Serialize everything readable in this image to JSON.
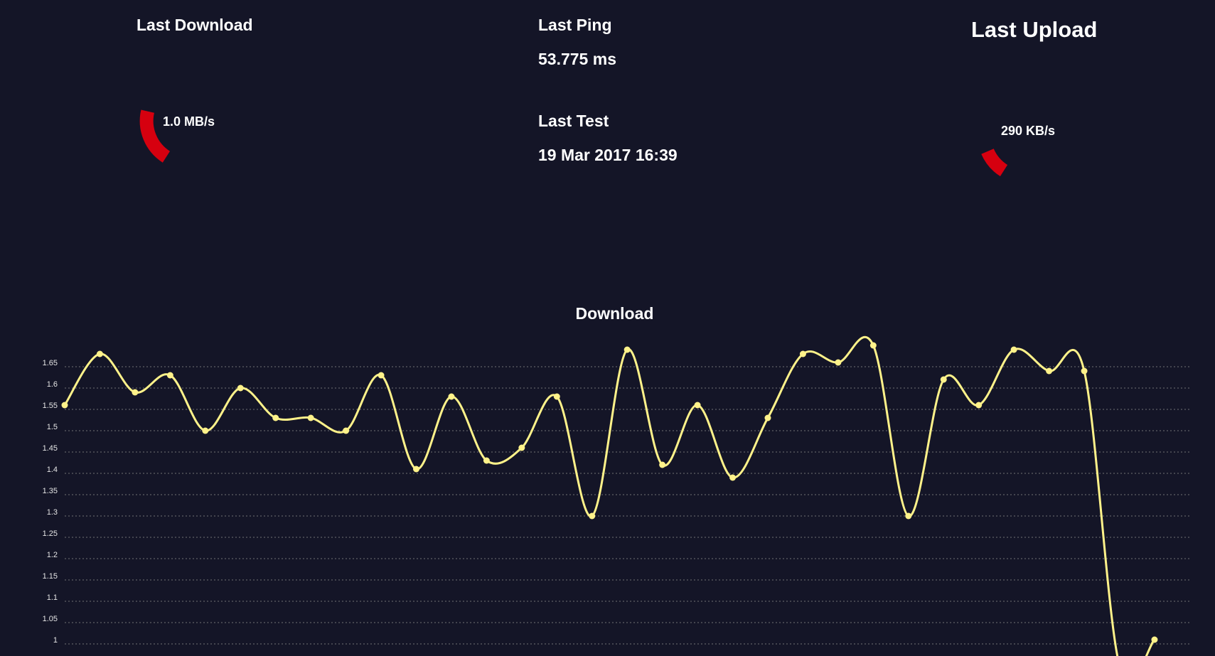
{
  "download": {
    "title": "Last Download",
    "gauge_value": "1.0 MB/s"
  },
  "ping": {
    "title": "Last Ping",
    "value": "53.775 ms"
  },
  "test": {
    "title": "Last Test",
    "value": "19 Mar 2017 16:39"
  },
  "upload": {
    "title": "Last Upload",
    "gauge_value": "290 KB/s"
  },
  "colors": {
    "background": "#141527",
    "gauge": "#d6000f",
    "series": "#fff28a",
    "grid": "#8a8a8a",
    "text": "#ffffff"
  },
  "chart_data": {
    "type": "line",
    "title": "Download",
    "xlabel": "",
    "ylabel": "",
    "ylim": [
      1,
      1.65
    ],
    "grid": true,
    "y_ticks": [
      "1",
      "1.05",
      "1.1",
      "1.15",
      "1.2",
      "1.25",
      "1.3",
      "1.35",
      "1.4",
      "1.45",
      "1.5",
      "1.55",
      "1.6",
      "1.65"
    ],
    "series": [
      {
        "values": [
          1.56,
          1.68,
          1.59,
          1.63,
          1.5,
          1.6,
          1.53,
          1.53,
          1.5,
          1.63,
          1.41,
          1.58,
          1.43,
          1.46,
          1.58,
          1.3,
          1.69,
          1.42,
          1.56,
          1.39,
          1.53,
          1.68,
          1.66,
          1.7,
          1.3,
          1.62,
          1.56,
          1.69,
          1.64,
          1.64,
          0.95,
          1.01
        ]
      }
    ]
  }
}
